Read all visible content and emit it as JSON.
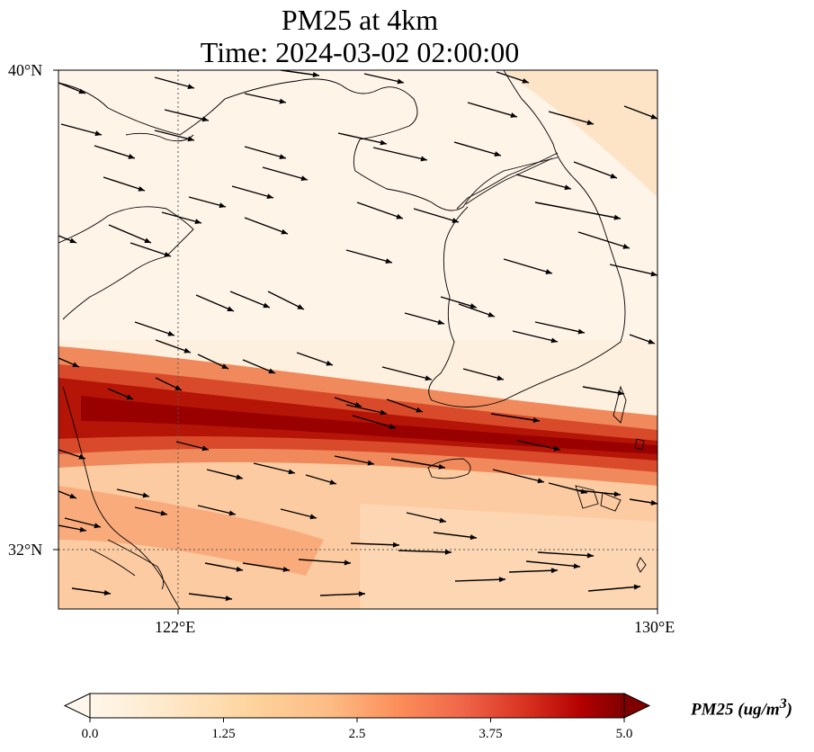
{
  "title": {
    "line1": "PM25 at 4km",
    "line2": "Time: 2024-03-02 02:00:00"
  },
  "map": {
    "lon_range": [
      120,
      130
    ],
    "lat_range": [
      31,
      40
    ],
    "lat_ticks": [
      {
        "value": 40,
        "label": "40°N"
      },
      {
        "value": 32,
        "label": "32°N"
      }
    ],
    "lon_ticks": [
      {
        "value": 122,
        "label": "122°E"
      },
      {
        "value": 130,
        "label": "130°E"
      }
    ],
    "gridlines": {
      "lon": 122,
      "lat": 32,
      "style": "dotted"
    },
    "coastline_color": "#000000"
  },
  "colorbar": {
    "label": "PM25 (ug/m",
    "label_sup": "3",
    "label_close": ")",
    "min": 0.0,
    "max": 5.0,
    "ticks": [
      "0.0",
      "1.25",
      "2.5",
      "3.75",
      "5.0"
    ],
    "colormap": "OrRd",
    "colors": [
      "#fff7ec",
      "#fee8c8",
      "#fdd49e",
      "#fdbb84",
      "#fc8d59",
      "#ef6548",
      "#d7301f",
      "#b30000",
      "#7f0000"
    ],
    "extend": "both"
  },
  "pm25_field": {
    "description_units": "ug/m3",
    "background_level": 0.25,
    "band": {
      "peak": 4.6,
      "secondary": 2.0
    }
  },
  "wind": {
    "direction": "west-north-west to east-south-east",
    "arrow_color": "#000000"
  }
}
